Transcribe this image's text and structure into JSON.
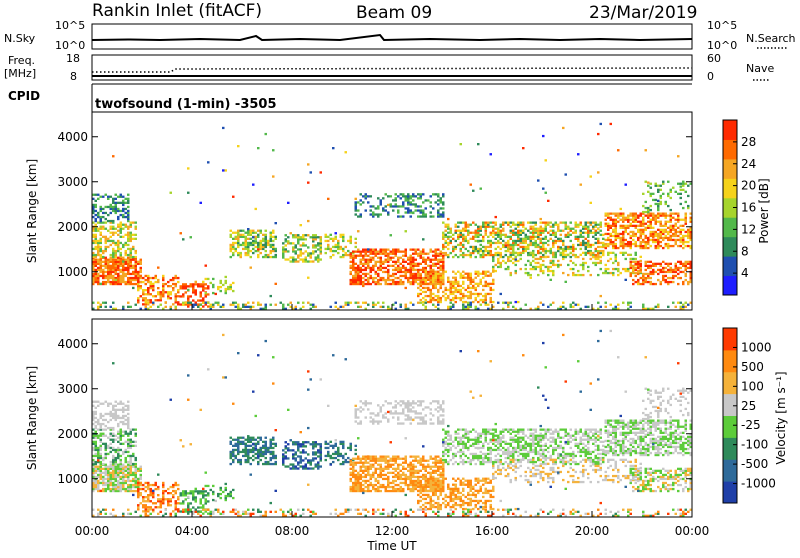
{
  "header": {
    "station": "Rankin Inlet (fitACF)",
    "beam": "Beam 09",
    "date": "23/Mar/2019"
  },
  "top_panels": {
    "nsky_label": "N.Sky",
    "nsky_ticks": [
      "10^5",
      "10^0"
    ],
    "nsearch_label": "N.Search",
    "nsearch_ticks": [
      "10^5",
      "10^0"
    ],
    "freq_label": "Freq.",
    "freq_unit": "[MHz]",
    "freq_ticks": [
      "18",
      "8"
    ],
    "nave_label": "Nave",
    "nave_ticks": [
      "60",
      "0"
    ],
    "cpid_label": "CPID",
    "cpid_text": "twofsound (1-min) -3505"
  },
  "chart_data": [
    {
      "type": "heatmap",
      "name": "power",
      "ylabel": "Slant Range [km]",
      "yticks": [
        "1000",
        "2000",
        "3000",
        "4000"
      ],
      "ylim": [
        150,
        4550
      ],
      "xlim": [
        0,
        24
      ],
      "colorbar_label": "Power [dB]",
      "colorbar_ticks": [
        "28",
        "24",
        "20",
        "16",
        "12",
        "8",
        "4"
      ],
      "colors": [
        "#1e1eff",
        "#1f4fb0",
        "#2e8a5a",
        "#52b84a",
        "#a6d42c",
        "#f5d21a",
        "#f5a623",
        "#ff6a00",
        "#ff2a00"
      ]
    },
    {
      "type": "heatmap",
      "name": "velocity",
      "ylabel": "Slant Range [km]",
      "yticks": [
        "1000",
        "2000",
        "3000",
        "4000"
      ],
      "ylim": [
        150,
        4550
      ],
      "xlim": [
        0,
        24
      ],
      "xlabel": "Time UT",
      "xticks": [
        "00:00",
        "04:00",
        "08:00",
        "12:00",
        "16:00",
        "20:00",
        "00:00"
      ],
      "colorbar_label": "Velocity [m s⁻¹]",
      "colorbar_ticks": [
        "1000",
        "500",
        "100",
        "25",
        "-25",
        "-100",
        "-500",
        "-1000"
      ],
      "colors": [
        "#1f3fa8",
        "#2e6a9a",
        "#2e8a5a",
        "#5ccc3a",
        "#c8c8c8",
        "#f5b23a",
        "#ff8a10",
        "#ff3a00"
      ]
    }
  ]
}
